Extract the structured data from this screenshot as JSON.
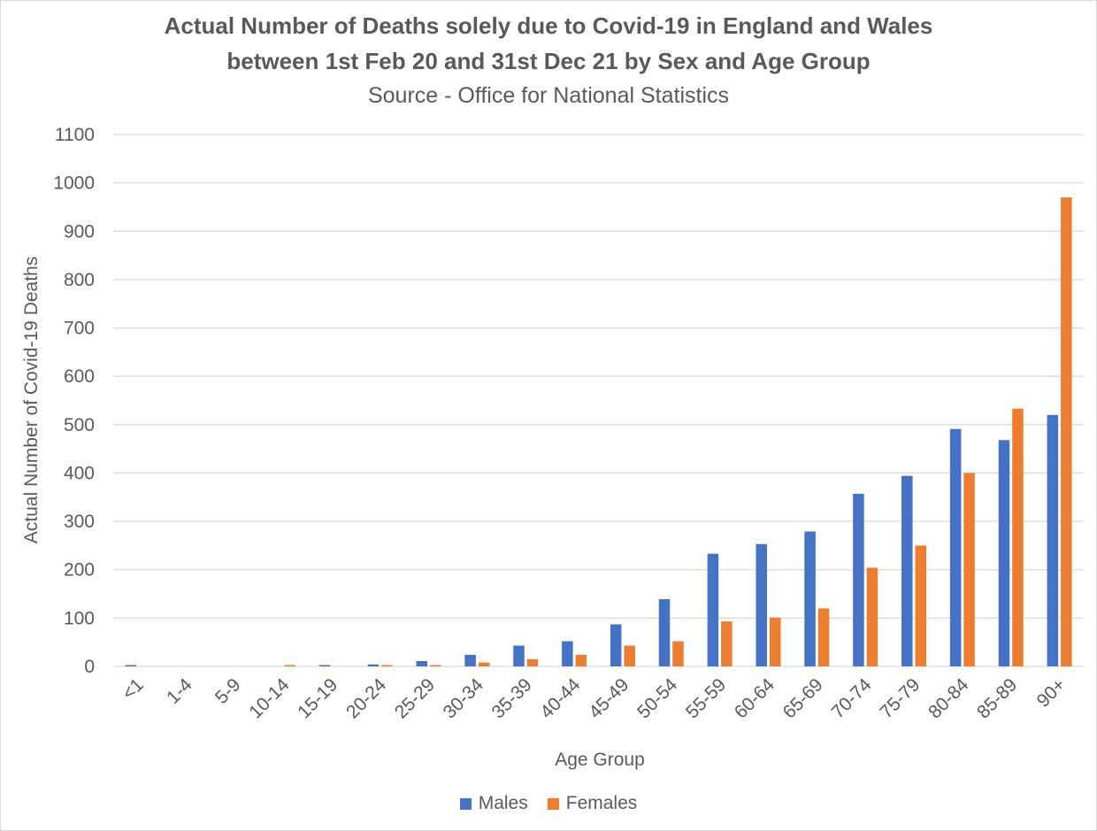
{
  "chart_data": {
    "type": "bar",
    "title": "Actual Number of Deaths solely due to Covid-19 in England and Wales",
    "title_line2": "between 1st Feb 20 and 31st Dec 21 by Sex and Age Group",
    "subtitle": "Source - Office for National Statistics",
    "xlabel": "Age Group",
    "ylabel": "Actual Number of Covid-19 Deaths",
    "ylim": [
      0,
      1100
    ],
    "yticks": [
      "0",
      "100",
      "200",
      "300",
      "400",
      "500",
      "600",
      "700",
      "800",
      "900",
      "1000",
      "1100"
    ],
    "grid": true,
    "legend_position": "bottom",
    "categories": [
      "<1",
      "1-4",
      "5-9",
      "10-14",
      "15-19",
      "20-24",
      "25-29",
      "30-34",
      "35-39",
      "40-44",
      "45-49",
      "50-54",
      "55-59",
      "60-64",
      "65-69",
      "70-74",
      "75-79",
      "80-84",
      "85-89",
      "90+"
    ],
    "series": [
      {
        "name": "Males",
        "color": "#4472c4",
        "values": [
          2,
          0,
          0,
          0,
          2,
          4,
          11,
          24,
          43,
          52,
          87,
          139,
          233,
          253,
          279,
          357,
          394,
          491,
          468,
          520
        ]
      },
      {
        "name": "Females",
        "color": "#ed7d31",
        "values": [
          0,
          0,
          0,
          2,
          0,
          2,
          2,
          8,
          15,
          24,
          43,
          52,
          93,
          101,
          120,
          204,
          250,
          400,
          533,
          970
        ]
      }
    ]
  }
}
